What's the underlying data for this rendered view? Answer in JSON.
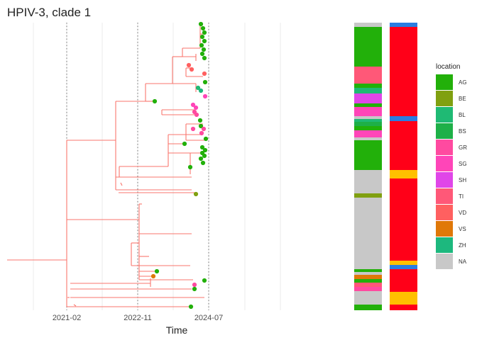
{
  "chart_data": {
    "type": "phylogenetic-tree",
    "title": "HPIV-3, clade 1",
    "xlabel": "Time",
    "x_ticks": [
      "2021-02",
      "2022-11",
      "2024-07"
    ],
    "dotted_reference_lines": [
      "2021-02",
      "2022-11",
      "2024-07"
    ],
    "grid": true,
    "branch_color": "#f8766d",
    "legend": {
      "title": "location",
      "placement": "right",
      "entries": [
        {
          "label": "AG",
          "color": "#22b00a"
        },
        {
          "label": "BE",
          "color": "#80a010"
        },
        {
          "label": "BL",
          "color": "#1fba74"
        },
        {
          "label": "BS",
          "color": "#1eb048"
        },
        {
          "label": "GR",
          "color": "#ff4aa0"
        },
        {
          "label": "SG",
          "color": "#ff45b8"
        },
        {
          "label": "SH",
          "color": "#e046e8"
        },
        {
          "label": "TI",
          "color": "#ff5878"
        },
        {
          "label": "VD",
          "color": "#ff6060"
        },
        {
          "label": "VS",
          "color": "#e07808"
        },
        {
          "label": "ZH",
          "color": "#1db87e"
        },
        {
          "label": "NA",
          "color": "#c8c8c8"
        }
      ]
    },
    "tips": [
      {
        "location": "AG"
      },
      {
        "location": "AG"
      },
      {
        "location": "AG"
      },
      {
        "location": "AG"
      },
      {
        "location": "AG"
      },
      {
        "location": "AG"
      },
      {
        "location": "AG"
      },
      {
        "location": "AG"
      },
      {
        "location": "AG"
      },
      {
        "location": "VD"
      },
      {
        "location": "VD"
      },
      {
        "location": "VD"
      },
      {
        "location": "AG"
      },
      {
        "location": "BL"
      },
      {
        "location": "ZH"
      },
      {
        "location": "SG"
      },
      {
        "location": "SG"
      },
      {
        "location": "AG"
      },
      {
        "location": "SG"
      },
      {
        "location": "NA"
      },
      {
        "location": "GR"
      },
      {
        "location": "GR"
      },
      {
        "location": "NA"
      },
      {
        "location": "AG"
      },
      {
        "location": "AG"
      },
      {
        "location": "GR"
      },
      {
        "location": "GR"
      },
      {
        "location": "AG"
      },
      {
        "location": "AG"
      },
      {
        "location": "AG"
      },
      {
        "location": "AG"
      },
      {
        "location": "AG"
      },
      {
        "location": "AG"
      },
      {
        "location": "AG"
      },
      {
        "location": "AG"
      },
      {
        "location": "AG"
      },
      {
        "location": "AG"
      },
      {
        "location": "AG"
      },
      {
        "location": "AG"
      },
      {
        "location": "AG"
      },
      {
        "location": "AG"
      },
      {
        "location": "NA"
      },
      {
        "location": "NA"
      },
      {
        "location": "NA"
      },
      {
        "location": "NA"
      },
      {
        "location": "NA"
      },
      {
        "location": "NA"
      },
      {
        "location": "NA"
      },
      {
        "location": "BE"
      }
    ],
    "lineage_colors": [
      "#2a7de1",
      "#ff0018",
      "#ffc000"
    ]
  }
}
